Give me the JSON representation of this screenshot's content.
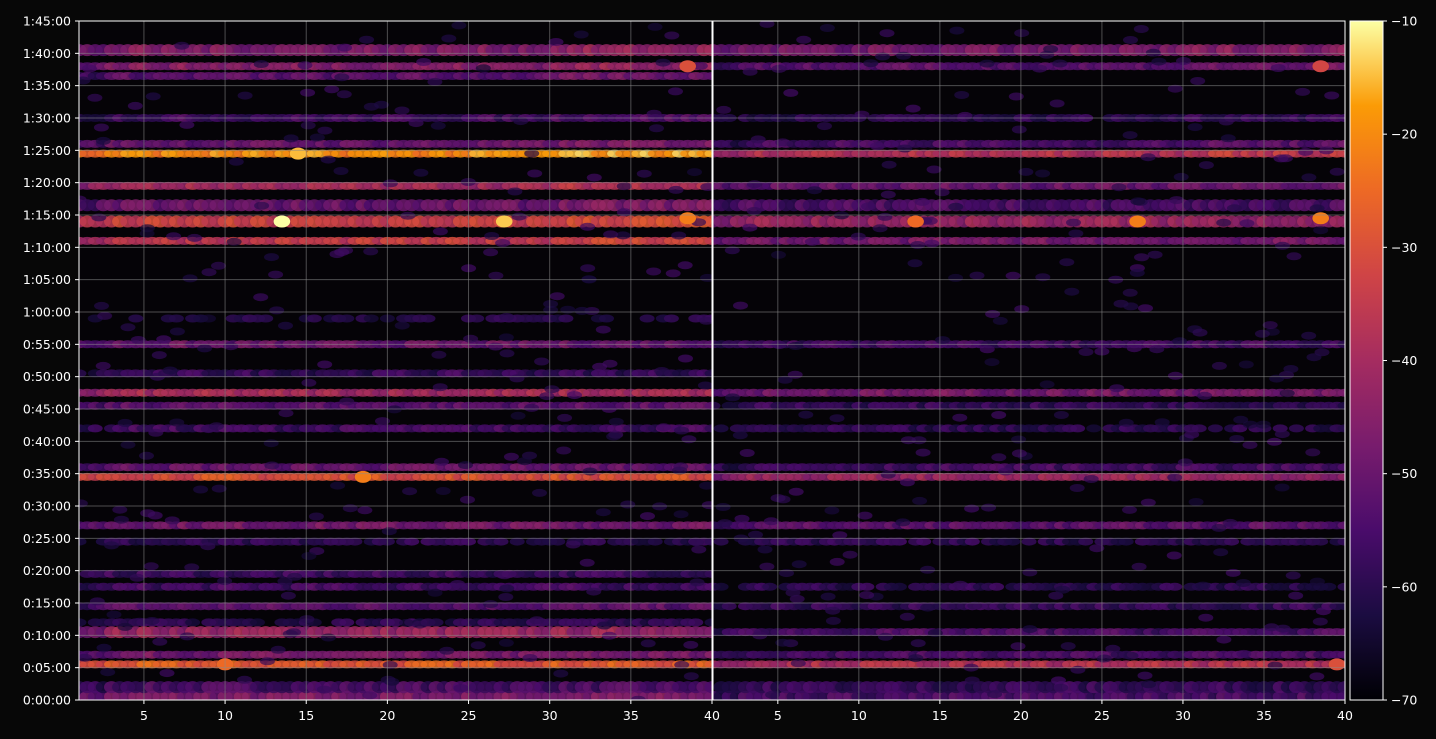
{
  "chart_data": [
    {
      "type": "heatmap",
      "panel": "left",
      "x_tick_labels": [
        "5",
        "10",
        "15",
        "20",
        "25",
        "30",
        "35",
        "40"
      ],
      "x_ticks": [
        5,
        10,
        15,
        20,
        25,
        30,
        35,
        40
      ],
      "xlim": [
        1,
        40
      ],
      "y_tick_labels": [
        "0:00:00",
        "0:05:00",
        "0:10:00",
        "0:15:00",
        "0:20:00",
        "0:25:00",
        "0:30:00",
        "0:35:00",
        "0:40:00",
        "0:45:00",
        "0:50:00",
        "0:55:00",
        "1:00:00",
        "1:05:00",
        "1:10:00",
        "1:15:00",
        "1:20:00",
        "1:25:00",
        "1:30:00",
        "1:35:00",
        "1:40:00",
        "1:45:00"
      ],
      "ylim_seconds": [
        0,
        6300
      ],
      "grid": true,
      "bands": [
        {
          "t": "0:00:30",
          "level": -47,
          "spread": 1.5
        },
        {
          "t": "0:02:00",
          "level": -55,
          "spread": 1.5
        },
        {
          "t": "0:05:30",
          "level": -28,
          "spread": 1.0
        },
        {
          "t": "0:07:00",
          "level": -48,
          "spread": 1.0
        },
        {
          "t": "0:10:30",
          "level": -42,
          "spread": 1.5
        },
        {
          "t": "0:12:00",
          "level": -60,
          "spread": 1.0
        },
        {
          "t": "0:14:30",
          "level": -52,
          "spread": 1.0
        },
        {
          "t": "0:17:30",
          "level": -56,
          "spread": 1.0
        },
        {
          "t": "0:19:30",
          "level": -57,
          "spread": 1.0
        },
        {
          "t": "0:24:30",
          "level": -60,
          "spread": 1.0
        },
        {
          "t": "0:27:00",
          "level": -48,
          "spread": 1.0
        },
        {
          "t": "0:34:30",
          "level": -30,
          "spread": 1.0
        },
        {
          "t": "0:36:00",
          "level": -50,
          "spread": 1.0
        },
        {
          "t": "0:42:00",
          "level": -56,
          "spread": 1.0
        },
        {
          "t": "0:45:30",
          "level": -52,
          "spread": 1.0
        },
        {
          "t": "0:47:30",
          "level": -40,
          "spread": 1.0
        },
        {
          "t": "0:50:30",
          "level": -58,
          "spread": 1.0
        },
        {
          "t": "0:55:00",
          "level": -50,
          "spread": 1.0
        },
        {
          "t": "0:59:00",
          "level": -62,
          "spread": 1.0
        },
        {
          "t": "1:11:00",
          "level": -35,
          "spread": 1.0
        },
        {
          "t": "1:14:00",
          "level": -34,
          "spread": 1.5
        },
        {
          "t": "1:16:30",
          "level": -50,
          "spread": 1.5
        },
        {
          "t": "1:19:30",
          "level": -40,
          "spread": 1.0
        },
        {
          "t": "1:24:30",
          "level": -20,
          "spread": 1.0
        },
        {
          "t": "1:26:00",
          "level": -50,
          "spread": 1.0
        },
        {
          "t": "1:30:00",
          "level": -56,
          "spread": 1.0
        },
        {
          "t": "1:36:30",
          "level": -52,
          "spread": 1.0
        },
        {
          "t": "1:38:00",
          "level": -45,
          "spread": 1.0
        },
        {
          "t": "1:40:30",
          "level": -46,
          "spread": 1.5
        }
      ],
      "hotspots": [
        {
          "x": 13.5,
          "t": "1:14:00",
          "level": -10
        },
        {
          "x": 27.2,
          "t": "1:14:00",
          "level": -14
        },
        {
          "x": 14.5,
          "t": "1:24:30",
          "level": -15
        },
        {
          "x": 18.5,
          "t": "0:34:30",
          "level": -22
        },
        {
          "x": 10,
          "t": "0:05:30",
          "level": -25
        },
        {
          "x": 38.5,
          "t": "1:14:30",
          "level": -22
        },
        {
          "x": 38.5,
          "t": "1:38:00",
          "level": -30
        }
      ]
    },
    {
      "type": "heatmap",
      "panel": "right",
      "x_tick_labels": [
        "5",
        "10",
        "15",
        "20",
        "25",
        "30",
        "35",
        "40"
      ],
      "x_ticks": [
        5,
        10,
        15,
        20,
        25,
        30,
        35,
        40
      ],
      "xlim": [
        1,
        40
      ],
      "ylim_seconds": [
        0,
        6300
      ],
      "grid": true,
      "bands": [
        {
          "t": "0:00:30",
          "level": -55,
          "spread": 1.5
        },
        {
          "t": "0:02:00",
          "level": -58,
          "spread": 1.5
        },
        {
          "t": "0:05:30",
          "level": -38,
          "spread": 1.0
        },
        {
          "t": "0:07:00",
          "level": -55,
          "spread": 1.0
        },
        {
          "t": "0:10:30",
          "level": -55,
          "spread": 1.0
        },
        {
          "t": "0:14:30",
          "level": -58,
          "spread": 1.0
        },
        {
          "t": "0:17:30",
          "level": -60,
          "spread": 1.0
        },
        {
          "t": "0:24:30",
          "level": -60,
          "spread": 1.0
        },
        {
          "t": "0:27:00",
          "level": -52,
          "spread": 1.0
        },
        {
          "t": "0:34:30",
          "level": -42,
          "spread": 1.0
        },
        {
          "t": "0:36:00",
          "level": -56,
          "spread": 1.0
        },
        {
          "t": "0:42:00",
          "level": -60,
          "spread": 1.0
        },
        {
          "t": "0:45:30",
          "level": -58,
          "spread": 1.0
        },
        {
          "t": "0:47:30",
          "level": -48,
          "spread": 1.0
        },
        {
          "t": "0:55:00",
          "level": -56,
          "spread": 1.0
        },
        {
          "t": "1:11:00",
          "level": -48,
          "spread": 1.0
        },
        {
          "t": "1:14:00",
          "level": -42,
          "spread": 1.5
        },
        {
          "t": "1:16:30",
          "level": -55,
          "spread": 1.5
        },
        {
          "t": "1:19:30",
          "level": -50,
          "spread": 1.0
        },
        {
          "t": "1:24:30",
          "level": -38,
          "spread": 1.0
        },
        {
          "t": "1:26:00",
          "level": -55,
          "spread": 1.0
        },
        {
          "t": "1:30:00",
          "level": -60,
          "spread": 1.0
        },
        {
          "t": "1:38:00",
          "level": -52,
          "spread": 1.0
        },
        {
          "t": "1:40:30",
          "level": -48,
          "spread": 1.5
        }
      ],
      "hotspots": [
        {
          "x": 13.5,
          "t": "1:14:00",
          "level": -25
        },
        {
          "x": 27.2,
          "t": "1:14:00",
          "level": -22
        },
        {
          "x": 38.5,
          "t": "1:14:30",
          "level": -22
        },
        {
          "x": 38.5,
          "t": "1:38:00",
          "level": -32
        },
        {
          "x": 39.5,
          "t": "0:05:30",
          "level": -30
        }
      ]
    }
  ],
  "colorbar": {
    "colormap": "inferno",
    "range": [
      -70,
      -10
    ],
    "tick_values": [
      -70,
      -60,
      -50,
      -40,
      -30,
      -20,
      -10
    ],
    "tick_labels": [
      "−70",
      "−60",
      "−50",
      "−40",
      "−30",
      "−20",
      "−10"
    ]
  },
  "colors": {
    "background": "#070707",
    "grid": "#8a8a8a",
    "text": "#ffffff"
  }
}
